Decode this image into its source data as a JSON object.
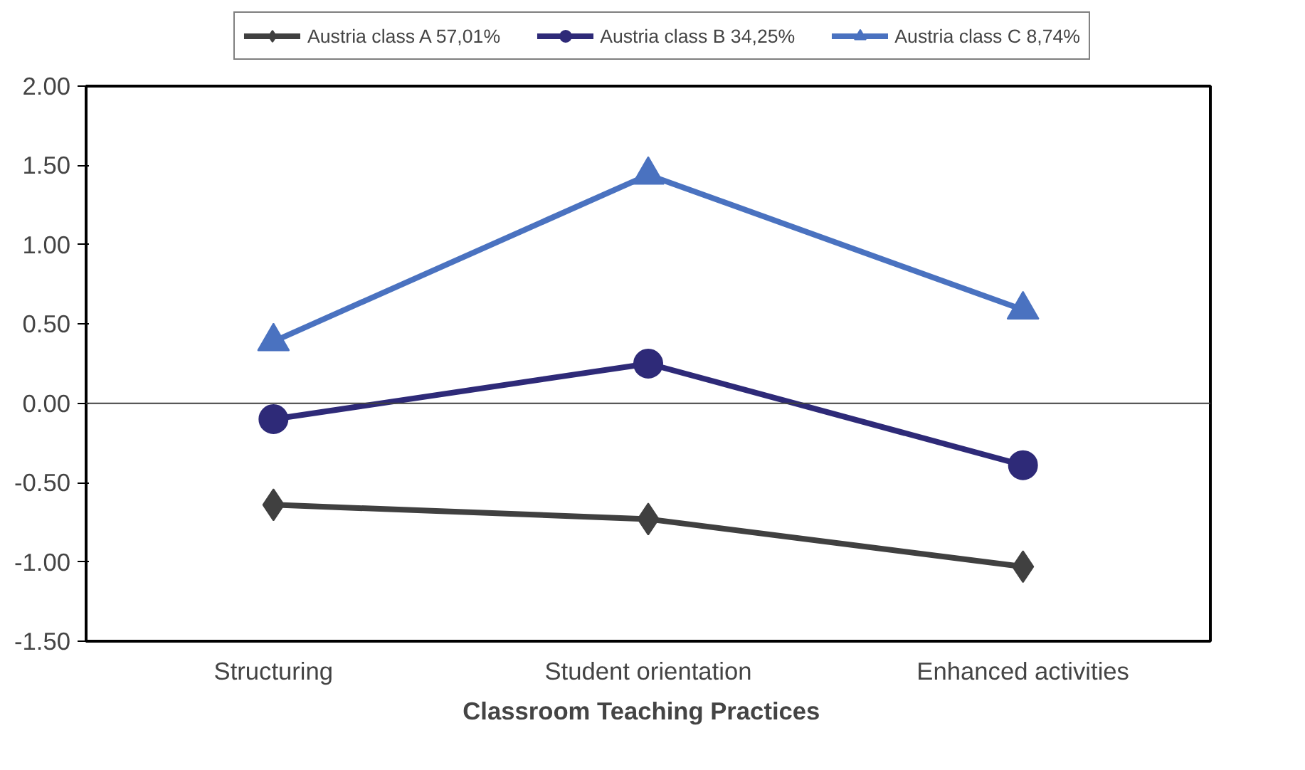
{
  "chart_data": {
    "type": "line",
    "xlabel": "Classroom  Teaching  Practices",
    "categories": [
      "Structuring",
      "Student orientation",
      "Enhanced activities"
    ],
    "series": [
      {
        "name": "Austria class A 57,01%",
        "color": "#404040",
        "marker": "diamond",
        "values": [
          -0.64,
          -0.73,
          -1.03
        ]
      },
      {
        "name": "Austria class B 34,25%",
        "color": "#2e2a78",
        "marker": "circle",
        "values": [
          -0.1,
          0.25,
          -0.39
        ]
      },
      {
        "name": "Austria class C 8,74%",
        "color": "#4a72c0",
        "marker": "triangle",
        "values": [
          0.39,
          1.44,
          0.59
        ]
      }
    ],
    "ylim": [
      -1.5,
      2.0
    ],
    "yticks": [
      {
        "value": 2.0,
        "label": "2.00"
      },
      {
        "value": 1.5,
        "label": "1.50"
      },
      {
        "value": 1.0,
        "label": "1.00"
      },
      {
        "value": 0.5,
        "label": "0.50"
      },
      {
        "value": 0.0,
        "label": "0.00"
      },
      {
        "value": -0.5,
        "label": "-0.50"
      },
      {
        "value": -1.0,
        "label": "-1.00"
      },
      {
        "value": -1.5,
        "label": "-1.50"
      }
    ],
    "ref_lines": [
      {
        "axis": "y",
        "value": 0,
        "color": "#404040"
      }
    ],
    "grid": false,
    "legend": "top",
    "line_style": "solid"
  }
}
